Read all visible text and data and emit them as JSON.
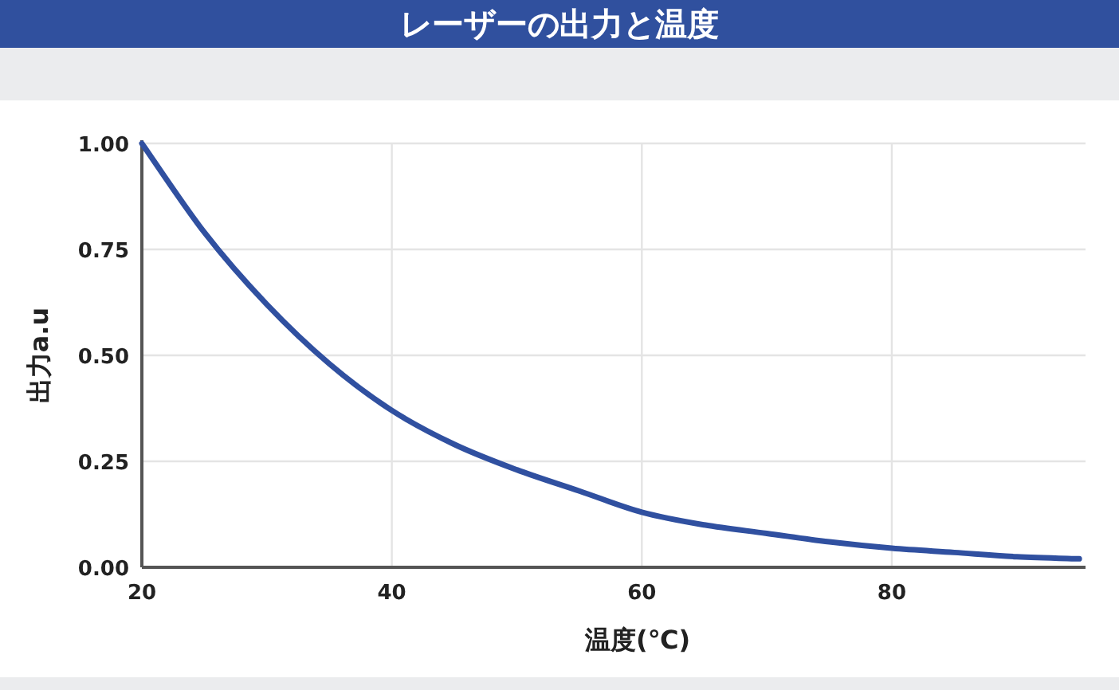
{
  "chart_data": {
    "type": "line",
    "title": "レーザーの出力と温度",
    "xlabel": "温度(℃)",
    "ylabel": "出力a.u",
    "x": [
      20,
      25,
      30,
      35,
      40,
      45,
      50,
      55,
      60,
      65,
      70,
      75,
      80,
      85,
      90,
      95
    ],
    "series": [
      {
        "color": "#3050a0",
        "values": [
          1.0,
          0.79,
          0.62,
          0.48,
          0.37,
          0.29,
          0.23,
          0.18,
          0.13,
          0.1,
          0.08,
          0.06,
          0.045,
          0.035,
          0.025,
          0.02
        ]
      }
    ],
    "xlim": [
      20,
      95.5
    ],
    "ylim": [
      0,
      1
    ],
    "xticks": [
      20,
      40,
      60,
      80
    ],
    "yticks": [
      {
        "value": 0,
        "label": "0.00"
      },
      {
        "value": 0.25,
        "label": "0.25"
      },
      {
        "value": 0.5,
        "label": "0.50"
      },
      {
        "value": 0.75,
        "label": "0.75"
      },
      {
        "value": 1,
        "label": "1.00"
      }
    ],
    "grid": true,
    "marker": "none",
    "line_style": "solid"
  }
}
